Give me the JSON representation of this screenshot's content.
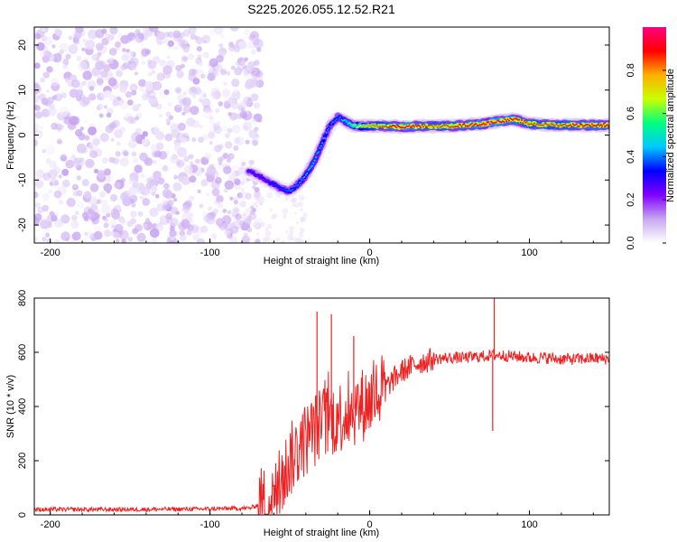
{
  "title": "S225.2026.055.12.52.R21",
  "chart_data": [
    {
      "type": "heatmap",
      "xlabel": "Height of straight line (km)",
      "ylabel": "Frequency (Hz)",
      "xlim": [
        -210,
        150
      ],
      "ylim": [
        -24,
        24
      ],
      "x_ticks": [
        -200,
        -100,
        0,
        100
      ],
      "y_ticks": [
        -20,
        -10,
        0,
        10,
        20
      ],
      "colorbar": {
        "label": "Normalized spectral amplitude",
        "range": [
          0,
          1
        ],
        "ticks": [
          0.0,
          0.2,
          0.4,
          0.6,
          0.8
        ],
        "colormap": [
          "#ffffff",
          "#c8a8f0",
          "#8000ff",
          "#0000ff",
          "#00c8ff",
          "#00ff80",
          "#c8ff00",
          "#ffb000",
          "#ff0000",
          "#ff0080"
        ]
      },
      "ridge": {
        "x": [
          -76,
          -70,
          -65,
          -60,
          -55,
          -50,
          -45,
          -40,
          -35,
          -30,
          -25,
          -20,
          -15,
          -10,
          -5,
          0,
          10,
          20,
          30,
          40,
          50,
          60,
          70,
          80,
          90,
          100,
          110,
          120,
          130,
          150
        ],
        "y": [
          -8,
          -9,
          -10,
          -11,
          -12,
          -12.5,
          -11,
          -9,
          -6,
          -2,
          2,
          4,
          3,
          2,
          2,
          2,
          2,
          1.8,
          2,
          2,
          2,
          2.2,
          2.4,
          3,
          3.5,
          2.5,
          2.3,
          2.2,
          2.2,
          2.2
        ],
        "amplitude": [
          0.3,
          0.3,
          0.3,
          0.35,
          0.35,
          0.4,
          0.4,
          0.45,
          0.5,
          0.45,
          0.4,
          0.4,
          0.5,
          0.6,
          0.7,
          0.8,
          0.85,
          0.95,
          0.9,
          0.85,
          0.85,
          0.9,
          0.95,
          0.95,
          0.9,
          0.85,
          0.85,
          0.85,
          0.9,
          0.9
        ]
      },
      "noise_region_x": [
        -210,
        -68
      ]
    },
    {
      "type": "line",
      "xlabel": "Height of straight line (km)",
      "ylabel": "SNR (10 * v/v)",
      "xlim": [
        -210,
        150
      ],
      "ylim": [
        0,
        800
      ],
      "x_ticks": [
        -200,
        -100,
        0,
        100
      ],
      "y_ticks": [
        0,
        200,
        400,
        600,
        800
      ],
      "color": "#ee2222",
      "series": [
        {
          "x": [
            -210,
            -150,
            -100,
            -75,
            -60,
            -50,
            -40,
            -30,
            -20,
            -10,
            0,
            10,
            20,
            30,
            40,
            50,
            60,
            70,
            80,
            90,
            100,
            110,
            120,
            130,
            140,
            150
          ],
          "y": [
            20,
            20,
            22,
            25,
            60,
            200,
            280,
            340,
            360,
            390,
            420,
            470,
            530,
            560,
            575,
            580,
            580,
            585,
            590,
            585,
            580,
            580,
            575,
            575,
            578,
            575
          ]
        }
      ],
      "spikes": [
        {
          "x": -33,
          "y": 750
        },
        {
          "x": -24,
          "y": 740
        },
        {
          "x": -10,
          "y": 660
        },
        {
          "x": 78,
          "y": 800
        },
        {
          "x": 77,
          "y": 310
        }
      ]
    }
  ]
}
